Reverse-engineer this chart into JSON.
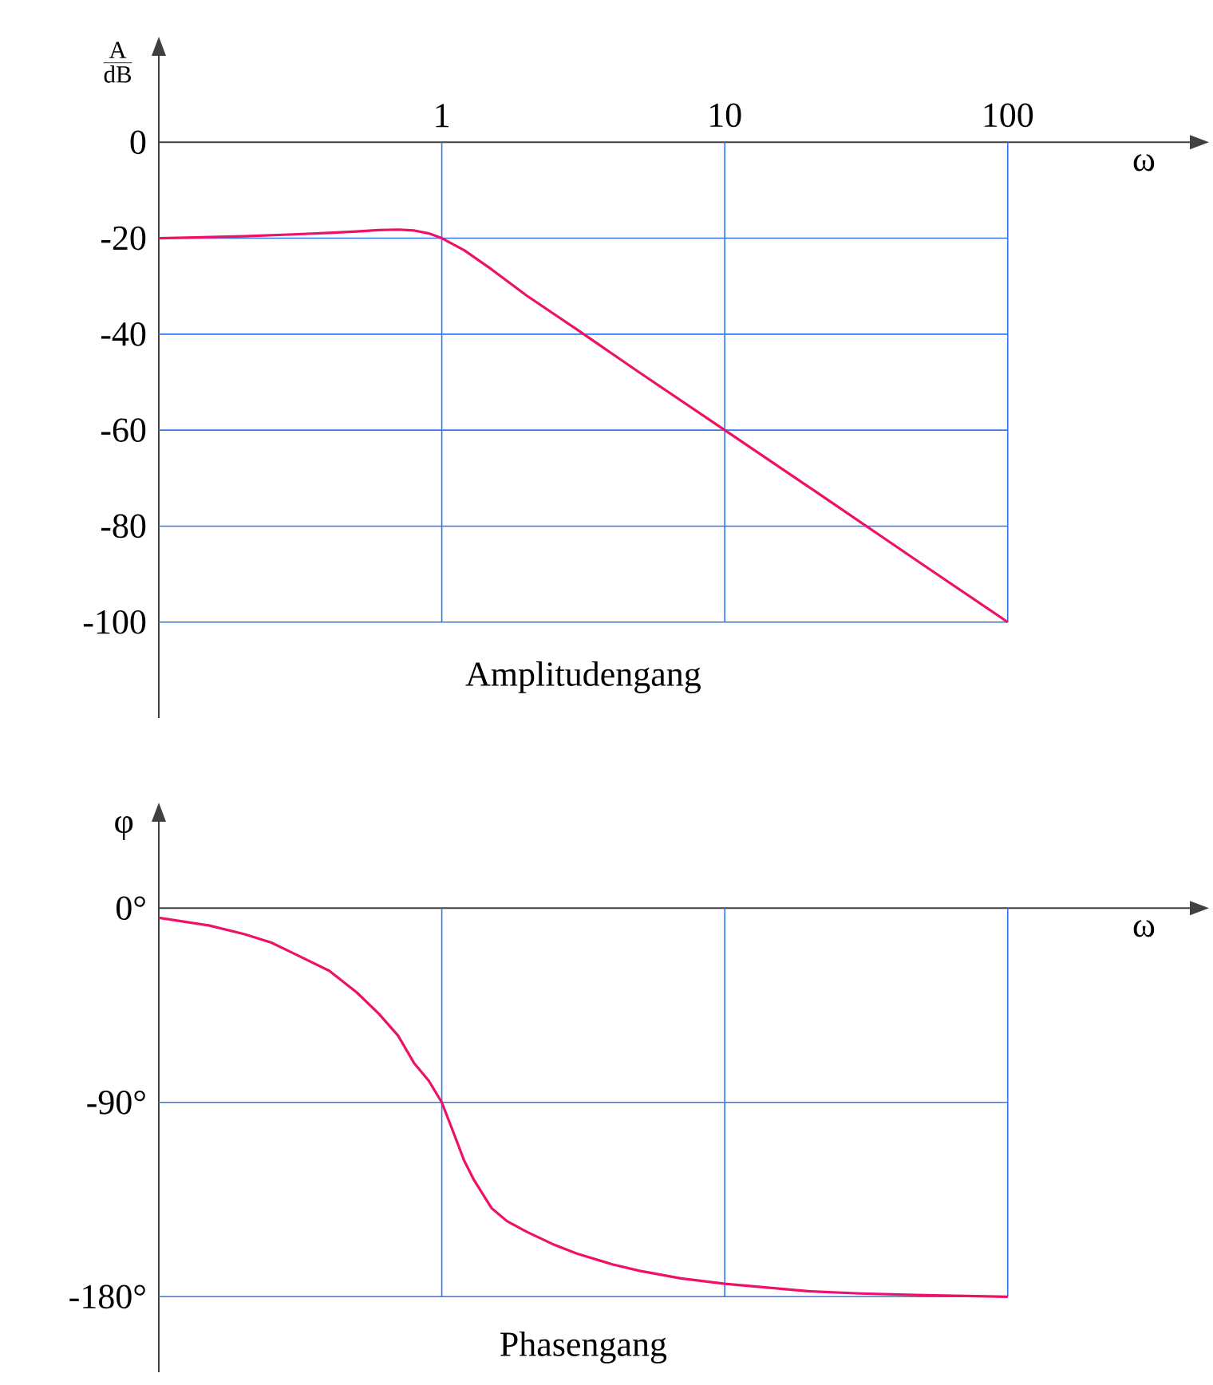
{
  "chart_data": [
    {
      "type": "line",
      "title": "Amplitudengang",
      "xlabel": "ω",
      "ylabel": "\\frac{\\mathrm{A}}{\\mathrm{dB}}",
      "log": "x",
      "grid": true,
      "marker": "none",
      "line_style": "solid",
      "xlim": [
        0.1,
        440
      ],
      "ylim": [
        -120,
        18
      ],
      "xticks": [
        1,
        10,
        100
      ],
      "yticks": [
        0,
        -20,
        -40,
        -60,
        -80,
        -100
      ],
      "series": [
        {
          "color": "#ee1166",
          "x": [
            0.1,
            0.2,
            0.3,
            0.4,
            0.5,
            0.6,
            0.7,
            0.8,
            0.9,
            1,
            1.2,
            1.5,
            2,
            3,
            5,
            10,
            20,
            50,
            100
          ],
          "values": [
            -20,
            -19.6,
            -19.2,
            -18.9,
            -18.6,
            -18.3,
            -18.2,
            -18.4,
            -19,
            -20,
            -22.5,
            -26.5,
            -32,
            -39,
            -48,
            -60,
            -72,
            -88,
            -100
          ]
        }
      ]
    },
    {
      "type": "line",
      "title": "Phasengang",
      "xlabel": "ω",
      "ylabel": "φ",
      "log": "x",
      "grid": true,
      "marker": "none",
      "line_style": "solid",
      "tick_labels": "y",
      "xlim": [
        0.1,
        440
      ],
      "ylim": [
        -215,
        40
      ],
      "xticks": [
        1,
        10,
        100
      ],
      "yticks": [
        {
          "value": 0,
          "label": "0°"
        },
        {
          "value": -90,
          "label": "-90°"
        },
        {
          "value": -180,
          "label": "-180°"
        }
      ],
      "series": [
        {
          "color": "#ee1166",
          "x": [
            0.1,
            0.15,
            0.2,
            0.25,
            0.3,
            0.4,
            0.5,
            0.6,
            0.7,
            0.8,
            0.9,
            1,
            1.1,
            1.2,
            1.3,
            1.5,
            1.7,
            2,
            2.5,
            3,
            4,
            5,
            7,
            10,
            20,
            30,
            50,
            100
          ],
          "values": [
            -4.5,
            -8,
            -12,
            -16,
            -21,
            -29,
            -39,
            -49,
            -59,
            -72,
            -80,
            -90,
            -104,
            -117,
            -126,
            -139,
            -145,
            -150,
            -156,
            -160,
            -165,
            -168,
            -171.5,
            -174,
            -177.5,
            -178.5,
            -179.3,
            -180
          ]
        }
      ]
    }
  ]
}
